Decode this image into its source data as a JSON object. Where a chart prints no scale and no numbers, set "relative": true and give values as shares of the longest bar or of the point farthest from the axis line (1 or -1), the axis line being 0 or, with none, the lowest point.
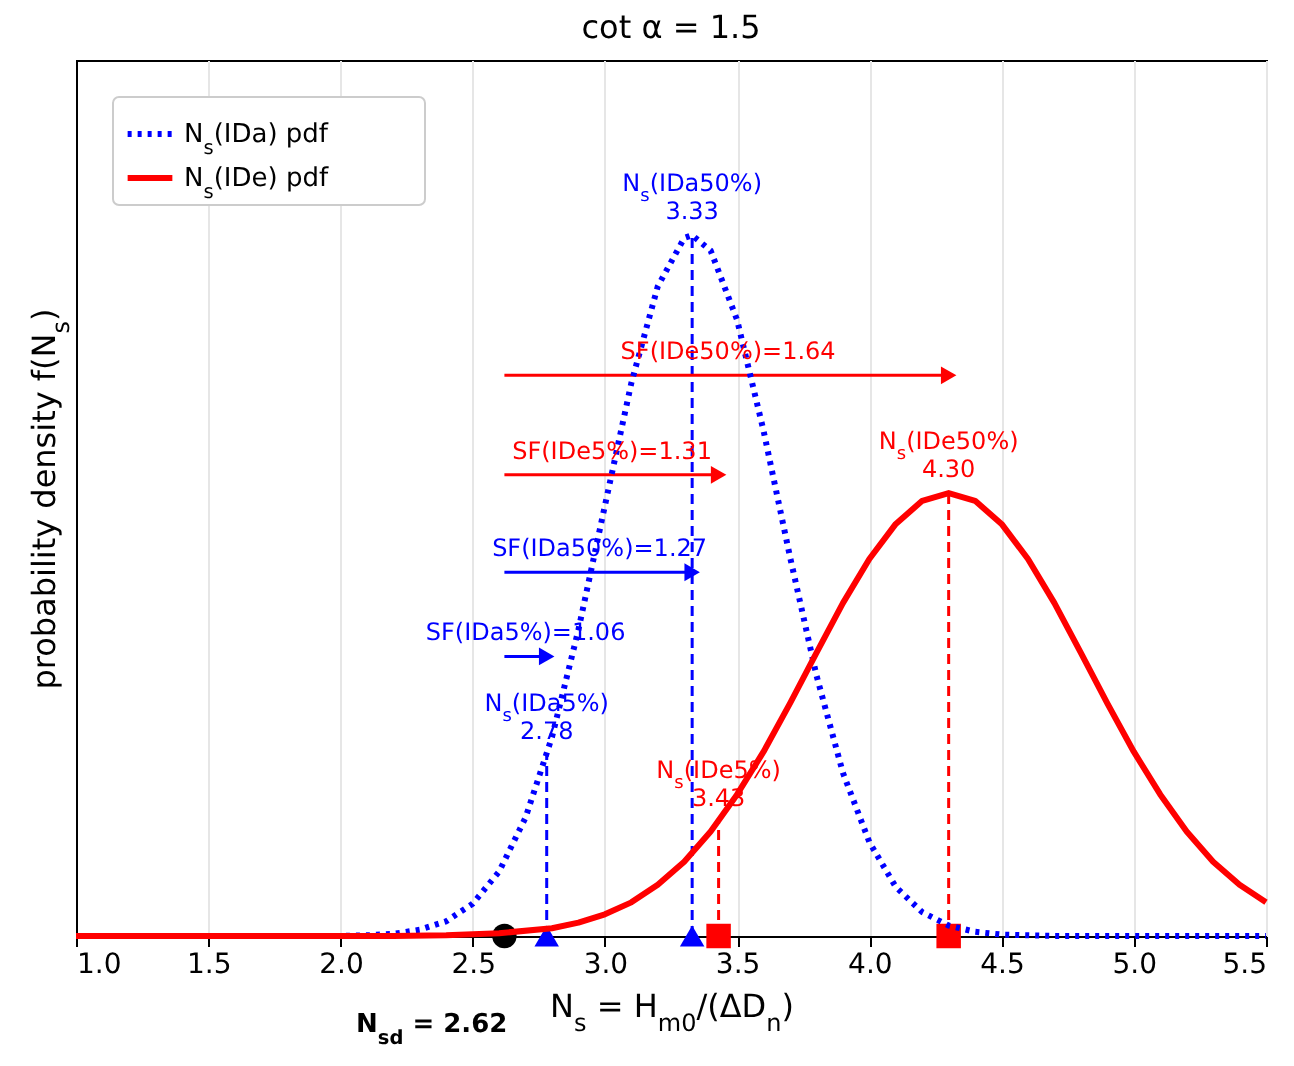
{
  "chart_data": {
    "type": "line",
    "title": "cot α = 1.5",
    "xlabel": "N$_{s}$ = H$_{m0}$/(ΔD$_{n}$)",
    "ylabel": "probability density f(N$_{s}$)",
    "relative": true,
    "xlim": [
      1.0,
      5.5
    ],
    "xticks": [
      {
        "value": 1,
        "label": "1.0"
      },
      1.5,
      {
        "value": 2,
        "label": "2.0"
      },
      2.5,
      {
        "value": 3,
        "label": "3.0"
      },
      3.5,
      {
        "value": 4,
        "label": "4.0"
      },
      4.5,
      {
        "value": 5,
        "label": "5.0"
      },
      5.5
    ],
    "grid": "x",
    "legend": "top left",
    "series": [
      {
        "name": "N$_{s}$(IDa) pdf",
        "color": "#0000ff",
        "line_style": "dotted",
        "x": [
          1.0,
          2.0,
          2.1,
          2.2,
          2.3,
          2.4,
          2.5,
          2.6,
          2.7,
          2.8,
          2.9,
          3.0,
          3.1,
          3.2,
          3.3,
          3.33,
          3.4,
          3.5,
          3.6,
          3.7,
          3.8,
          3.9,
          4.0,
          4.1,
          4.2,
          4.3,
          4.4,
          4.5,
          4.6,
          4.7,
          5.5
        ],
        "values": [
          0,
          0,
          0.001,
          0.003,
          0.009,
          0.021,
          0.046,
          0.092,
          0.169,
          0.284,
          0.437,
          0.614,
          0.789,
          0.927,
          0.996,
          1,
          0.978,
          0.879,
          0.721,
          0.541,
          0.372,
          0.233,
          0.134,
          0.07,
          0.034,
          0.015,
          0.006,
          0.002,
          0.001,
          0,
          0
        ]
      },
      {
        "name": "N$_{s}$(IDe) pdf",
        "color": "#ff0000",
        "line_style": "solid",
        "x": [
          1.0,
          2.0,
          2.2,
          2.4,
          2.6,
          2.8,
          2.9,
          3.0,
          3.1,
          3.2,
          3.3,
          3.4,
          3.5,
          3.6,
          3.7,
          3.8,
          3.9,
          4.0,
          4.1,
          4.2,
          4.3,
          4.4,
          4.5,
          4.6,
          4.7,
          4.8,
          4.9,
          5.0,
          5.1,
          5.2,
          5.3,
          5.4,
          5.5
        ],
        "values": [
          0,
          0,
          0,
          0.001,
          0.004,
          0.011,
          0.019,
          0.031,
          0.048,
          0.073,
          0.106,
          0.149,
          0.202,
          0.263,
          0.332,
          0.404,
          0.475,
          0.538,
          0.588,
          0.621,
          0.632,
          0.621,
          0.588,
          0.538,
          0.475,
          0.404,
          0.332,
          0.263,
          0.202,
          0.149,
          0.106,
          0.073,
          0.048
        ]
      },
      {
        "type": "line",
        "color": "#0000ff",
        "line_style": "dashed",
        "x": [
          2.78,
          2.78
        ],
        "values": [
          0,
          0.258
        ]
      },
      {
        "type": "line",
        "color": "#0000ff",
        "line_style": "dashed",
        "x": [
          3.33,
          3.33
        ],
        "values": [
          0,
          1
        ]
      },
      {
        "type": "line",
        "color": "#ff0000",
        "line_style": "dashed",
        "x": [
          3.43,
          3.43
        ],
        "values": [
          0,
          0.163
        ]
      },
      {
        "type": "line",
        "color": "#ff0000",
        "line_style": "dashed",
        "x": [
          4.3,
          4.3
        ],
        "values": [
          0,
          0.632
        ]
      },
      {
        "type": "line",
        "color": "#ff0000",
        "line_style": "solid",
        "marker": "triangle",
        "x": [
          2.62,
          4.3
        ],
        "values": [
          0.8,
          0.8
        ]
      },
      {
        "type": "line",
        "color": "#ff0000",
        "line_style": "solid",
        "marker": "triangle",
        "x": [
          2.62,
          3.43
        ],
        "values": [
          0.658,
          0.658
        ]
      },
      {
        "type": "line",
        "color": "#0000ff",
        "line_style": "solid",
        "marker": "triangle",
        "x": [
          2.62,
          3.33
        ],
        "values": [
          0.519,
          0.519
        ]
      },
      {
        "type": "line",
        "color": "#0000ff",
        "line_style": "solid",
        "marker": "triangle",
        "x": [
          2.62,
          2.78
        ],
        "values": [
          0.399,
          0.399
        ]
      },
      {
        "type": "scatter",
        "color": "#000000",
        "marker": "circle",
        "x": [
          2.62
        ],
        "values": [
          0
        ]
      },
      {
        "type": "scatter",
        "color": "#0000ff",
        "marker": "triangle",
        "x": [
          2.78,
          3.33
        ],
        "values": [
          0,
          0
        ]
      },
      {
        "type": "scatter",
        "color": "#ff0000",
        "marker": "square",
        "x": [
          3.43,
          4.3
        ],
        "values": [
          0,
          0
        ]
      }
    ],
    "annotations": [
      {
        "text": "N$_{s}$(IDa50%)",
        "x": 3.33,
        "y": 1
      },
      {
        "text": "3.33",
        "x": 3.33,
        "y": 1
      },
      {
        "text": "SF(IDe50%)=1.64",
        "x": 3.466,
        "y": 0.8
      },
      {
        "text": "N$_{s}$(IDe50%)",
        "x": 4.3,
        "y": 0.632
      },
      {
        "text": "4.30",
        "x": 4.3,
        "y": 0.632
      },
      {
        "text": "SF(IDe5%)=1.31",
        "x": 3.027,
        "y": 0.658
      },
      {
        "text": "SF(IDa50%)=1.27",
        "x": 2.98,
        "y": 0.519
      },
      {
        "text": "SF(IDa5%)=1.06",
        "x": 2.7,
        "y": 0.399
      },
      {
        "text": "N$_{s}$(IDa5%)",
        "x": 2.78,
        "y": 0.258
      },
      {
        "text": "2.78",
        "x": 2.78,
        "y": 0.258
      },
      {
        "text": "N$_{s}$(IDe5%)",
        "x": 3.43,
        "y": 0.163
      },
      {
        "text": "3.43",
        "x": 3.43,
        "y": 0.163
      },
      "N$_{sd}$ = 2.62"
    ]
  }
}
